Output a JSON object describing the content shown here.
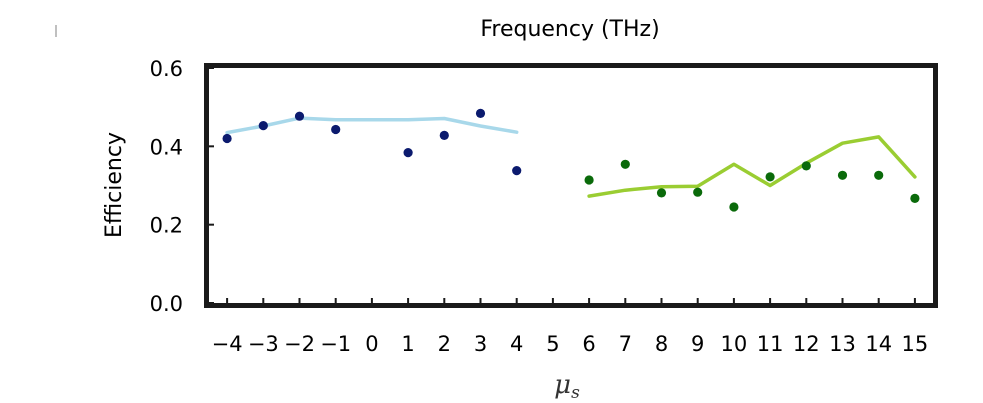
{
  "chart_data": {
    "type": "scatter",
    "title": "Frequency (THz)",
    "xlabel_main": "μ",
    "xlabel_sub": "s",
    "ylabel": "Efficiency",
    "xlim": [
      -4.5,
      15.5
    ],
    "ylim": [
      0.0,
      0.6
    ],
    "grid": false,
    "x_ticks": [
      -4,
      -3,
      -2,
      -1,
      0,
      1,
      2,
      3,
      4,
      5,
      6,
      7,
      8,
      9,
      10,
      11,
      12,
      13,
      14,
      15
    ],
    "x_tick_labels": [
      "−4",
      "−3",
      "−2",
      "−1",
      "0",
      "1",
      "2",
      "3",
      "4",
      "5",
      "6",
      "7",
      "8",
      "9",
      "10",
      "11",
      "12",
      "13",
      "14",
      "15"
    ],
    "y_ticks": [
      0.0,
      0.2,
      0.4,
      0.6
    ],
    "y_tick_labels": [
      "0.0",
      "0.2",
      "0.4",
      "0.6"
    ],
    "series": [
      {
        "style": "line",
        "color": "#a8d8ea",
        "x": [
          -4,
          -3,
          -2,
          -1,
          0,
          1,
          2,
          3,
          4
        ],
        "y": [
          0.435,
          0.452,
          0.472,
          0.468,
          0.468,
          0.468,
          0.471,
          0.452,
          0.436
        ]
      },
      {
        "style": "markers",
        "color": "#0b1a6e",
        "x": [
          -4,
          -3,
          -2,
          -1,
          1,
          2,
          3,
          4
        ],
        "y": [
          0.42,
          0.453,
          0.477,
          0.443,
          0.384,
          0.428,
          0.484,
          0.338
        ]
      },
      {
        "style": "line",
        "color": "#9acd32",
        "x": [
          6,
          7,
          8,
          9,
          10,
          11,
          12,
          13,
          14,
          15
        ],
        "y": [
          0.273,
          0.288,
          0.297,
          0.298,
          0.354,
          0.3,
          0.357,
          0.408,
          0.424,
          0.322
        ]
      },
      {
        "style": "markers",
        "color": "#0a6a0a",
        "x": [
          6,
          7,
          8,
          9,
          10,
          11,
          12,
          13,
          14,
          15
        ],
        "y": [
          0.314,
          0.354,
          0.281,
          0.283,
          0.245,
          0.322,
          0.35,
          0.326,
          0.326,
          0.267
        ]
      }
    ]
  }
}
